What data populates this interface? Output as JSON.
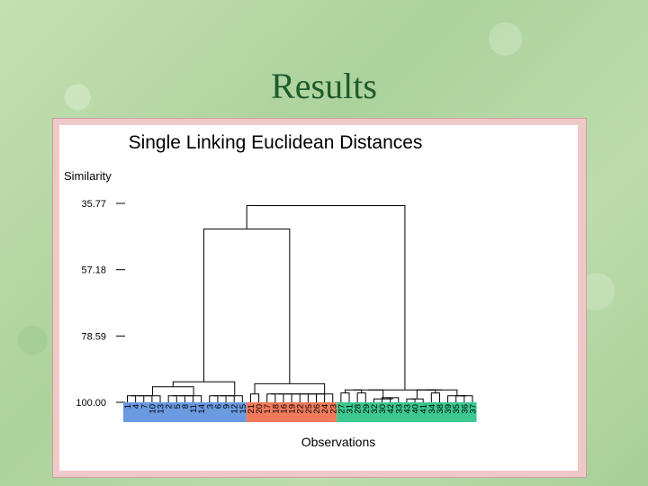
{
  "slide": {
    "title": "Results"
  },
  "chart_data": {
    "type": "dendrogram",
    "title": "Single Linking   Euclidean Distances",
    "ylabel": "Similarity",
    "xlabel": "Observations",
    "yticks": [
      "35.77",
      "57.18",
      "78.59",
      "100.00"
    ],
    "ylim": [
      35.77,
      100.0
    ],
    "leaves": [
      "1",
      "4",
      "7",
      "10",
      "13",
      "2",
      "5",
      "8",
      "11",
      "14",
      "3",
      "6",
      "9",
      "12",
      "15",
      "21",
      "20",
      "17",
      "18",
      "16",
      "19",
      "22",
      "25",
      "26",
      "24",
      "23",
      "27",
      "31",
      "28",
      "29",
      "32",
      "30",
      "42",
      "33",
      "43",
      "40",
      "41",
      "34",
      "38",
      "39",
      "35",
      "36",
      "37"
    ],
    "groups": [
      {
        "color": "#6a9ae0",
        "leaves": [
          "1",
          "4",
          "7",
          "10",
          "13",
          "2",
          "5",
          "8",
          "11",
          "14",
          "3",
          "6",
          "9",
          "12",
          "15"
        ]
      },
      {
        "color": "#f07a5a",
        "leaves": [
          "21",
          "20",
          "17",
          "18",
          "16",
          "19",
          "22",
          "25",
          "26",
          "24",
          "23"
        ]
      },
      {
        "color": "#3cc890",
        "leaves": [
          "27",
          "31",
          "28",
          "29",
          "32",
          "30",
          "42",
          "33",
          "43",
          "40",
          "41",
          "34",
          "38",
          "39",
          "35",
          "36",
          "37"
        ]
      }
    ],
    "merges": [
      {
        "left": "1",
        "right": "4",
        "similarity": 97.9
      },
      {
        "left": "1+4",
        "right": "7",
        "similarity": 97.9
      },
      {
        "left": "1-7",
        "right": "10",
        "similarity": 97.9
      },
      {
        "left": "1-10",
        "right": "13",
        "similarity": 97.9
      },
      {
        "left": "2",
        "right": "5",
        "similarity": 97.9
      },
      {
        "left": "2+5",
        "right": "8",
        "similarity": 97.9
      },
      {
        "left": "2-8",
        "right": "11",
        "similarity": 97.9
      },
      {
        "left": "2-11",
        "right": "14",
        "similarity": 97.9
      },
      {
        "left": "3",
        "right": "6",
        "similarity": 97.9
      },
      {
        "left": "3+6",
        "right": "9",
        "similarity": 97.9
      },
      {
        "left": "3-9",
        "right": "12",
        "similarity": 97.9
      },
      {
        "left": "3-12",
        "right": "15",
        "similarity": 97.9
      },
      {
        "left": "A",
        "right": "B",
        "similarity": 95.0
      },
      {
        "left": "AB",
        "right": "C",
        "similarity": 93.4
      },
      {
        "left": "21",
        "right": "20",
        "similarity": 97.3
      },
      {
        "left": "21+20",
        "right": "17",
        "similarity": 94.0
      },
      {
        "left": "17-18",
        "right": "16-23",
        "similarity": 97.3
      },
      {
        "left": "27",
        "right": "31",
        "similarity": 97.0
      },
      {
        "left": "28",
        "right": "29",
        "similarity": 97.0
      },
      {
        "left": "42",
        "right": "33",
        "similarity": 98.5
      },
      {
        "left": "42+33",
        "right": "43",
        "similarity": 98.5
      },
      {
        "left": "30",
        "right": "42-43",
        "similarity": 98.9
      },
      {
        "left": "34",
        "right": "38",
        "similarity": 97.0
      },
      {
        "left": "35",
        "right": "36",
        "similarity": 97.9
      },
      {
        "left": "35+36",
        "right": "37",
        "similarity": 97.9
      },
      {
        "left": "green-left",
        "right": "green-right",
        "similarity": 96.0
      },
      {
        "left": "blue",
        "right": "orange",
        "similarity": 44.0
      },
      {
        "left": "blue+orange",
        "right": "green",
        "similarity": 36.5
      }
    ]
  }
}
